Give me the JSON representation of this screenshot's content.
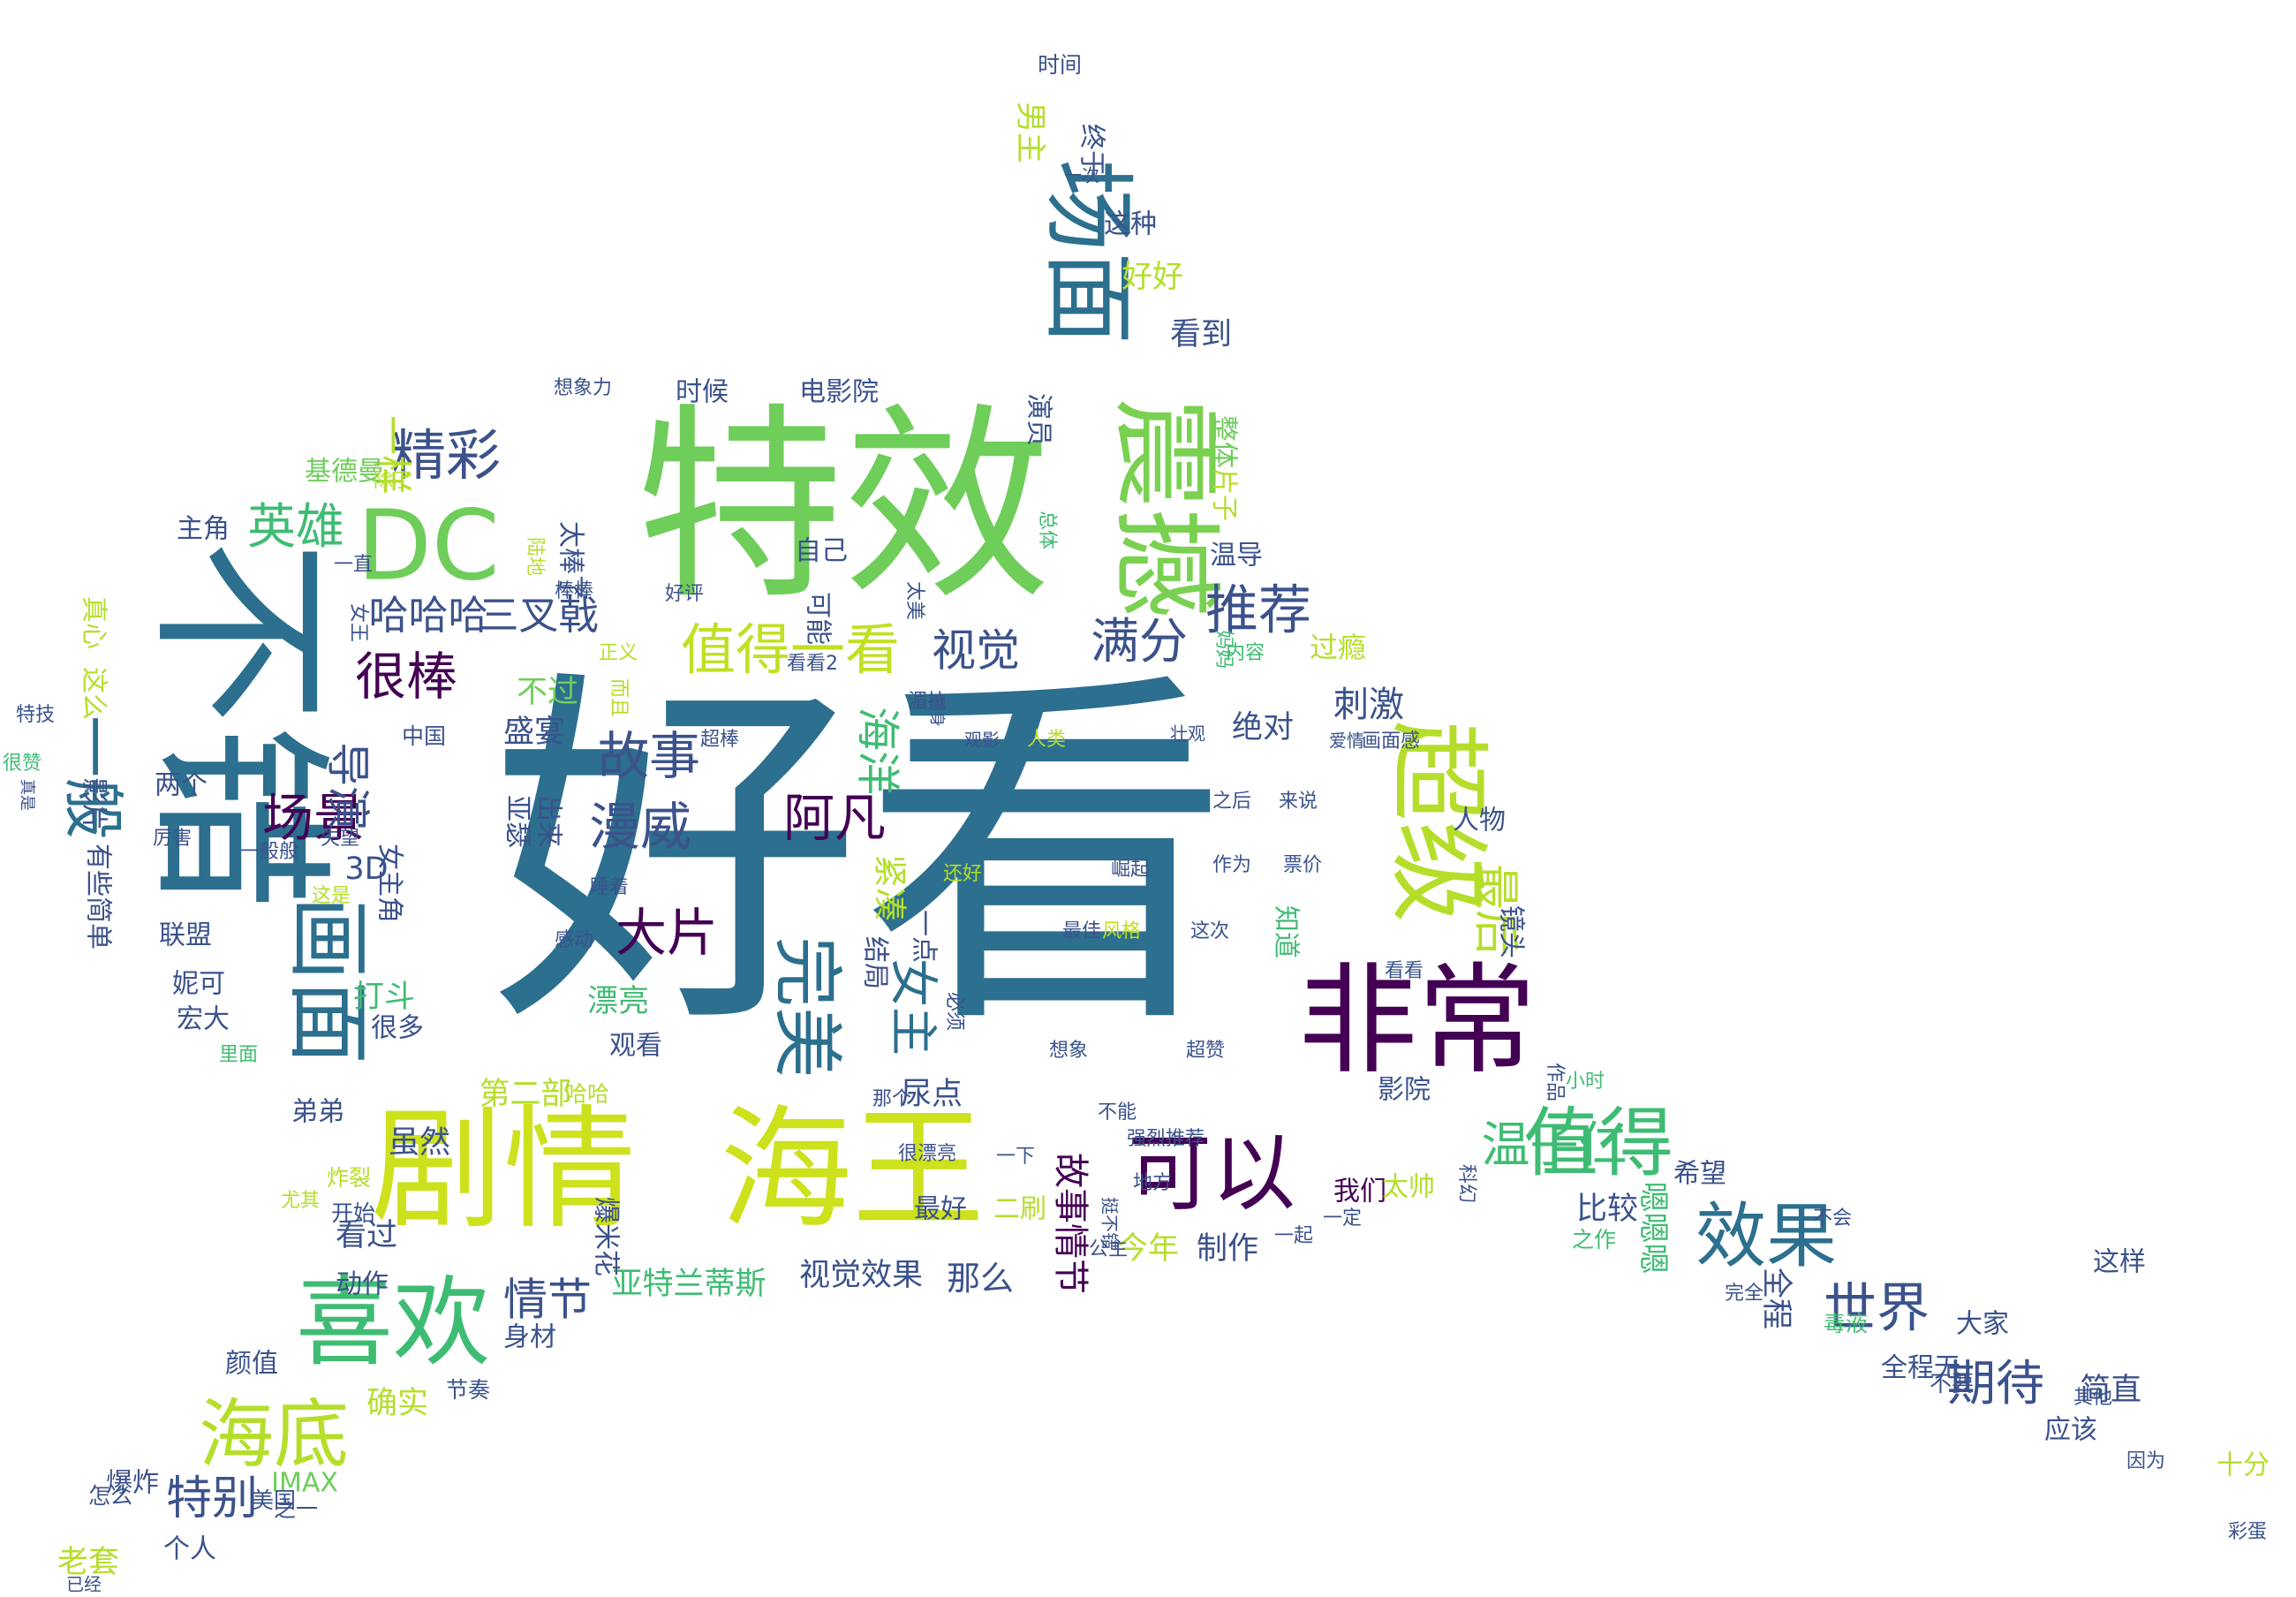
{
  "words": [
    {
      "text": "好看",
      "color": "#2c6f8e"
    },
    {
      "text": "特效",
      "color": "#6fcd5a"
    },
    {
      "text": "不错",
      "color": "#2c6f8e"
    },
    {
      "text": "剧情",
      "color": "#cde11d"
    },
    {
      "text": "海王",
      "color": "#cde11d"
    },
    {
      "text": "非常",
      "color": "#440154"
    },
    {
      "text": "震撼",
      "color": "#7ad151"
    },
    {
      "text": "场面",
      "color": "#2c6f8e"
    },
    {
      "text": "超级",
      "color": "#b5de2b"
    },
    {
      "text": "喜欢",
      "color": "#3fbc73"
    },
    {
      "text": "DC",
      "color": "#6fcd5a"
    },
    {
      "text": "可以",
      "color": "#440154"
    },
    {
      "text": "画面",
      "color": "#2c6f8e"
    },
    {
      "text": "值得",
      "color": "#3fbc73"
    },
    {
      "text": "海底",
      "color": "#b5de2b"
    },
    {
      "text": "完美",
      "color": "#2c6f8e"
    },
    {
      "text": "效果",
      "color": "#2c6f8e"
    },
    {
      "text": "一般",
      "color": "#2c6f8e"
    },
    {
      "text": "值得一看",
      "color": "#c2df23"
    },
    {
      "text": "精彩",
      "color": "#3b528b"
    },
    {
      "text": "推荐",
      "color": "#3b528b"
    },
    {
      "text": "很棒",
      "color": "#440154"
    },
    {
      "text": "满分",
      "color": "#3b528b"
    },
    {
      "text": "世界",
      "color": "#3b528b"
    },
    {
      "text": "故事",
      "color": "#3b528b"
    },
    {
      "text": "漫威",
      "color": "#3b528b"
    },
    {
      "text": "阿凡",
      "color": "#440154"
    },
    {
      "text": "大片",
      "color": "#440154"
    },
    {
      "text": "场景",
      "color": "#440154"
    },
    {
      "text": "导演",
      "color": "#3b528b"
    },
    {
      "text": "英雄",
      "color": "#3fbc73"
    },
    {
      "text": "视觉",
      "color": "#3b528b"
    },
    {
      "text": "女主",
      "color": "#2c6f8e"
    },
    {
      "text": "海洋",
      "color": "#3fbc73"
    },
    {
      "text": "期待",
      "color": "#3b528b"
    },
    {
      "text": "特别",
      "color": "#3b528b"
    },
    {
      "text": "情节",
      "color": "#3b528b"
    },
    {
      "text": "最后",
      "color": "#b5de2b"
    },
    {
      "text": "温子仁",
      "color": "#3fbc73"
    },
    {
      "text": "三叉戟",
      "color": "#3b528b"
    },
    {
      "text": "哈哈哈",
      "color": "#3b528b"
    },
    {
      "text": "一样",
      "color": "#b5de2b"
    },
    {
      "text": "刺激",
      "color": "#3b528b"
    },
    {
      "text": "看到",
      "color": "#3b528b"
    },
    {
      "text": "好好",
      "color": "#b5de2b"
    },
    {
      "text": "时候",
      "color": "#3b528b"
    },
    {
      "text": "电影院",
      "color": "#3b528b"
    },
    {
      "text": "基德曼",
      "color": "#6fcd5a"
    },
    {
      "text": "主角",
      "color": "#3b528b"
    },
    {
      "text": "男主",
      "color": "#b5de2b"
    },
    {
      "text": "终于",
      "color": "#3b528b"
    },
    {
      "text": "这种",
      "color": "#3b528b"
    },
    {
      "text": "时间",
      "color": "#3b528b"
    },
    {
      "text": "一次",
      "color": "#3b528b"
    },
    {
      "text": "演员",
      "color": "#3b528b"
    },
    {
      "text": "整体",
      "color": "#6fcd5a"
    },
    {
      "text": "片子",
      "color": "#b5de2b"
    },
    {
      "text": "太棒了",
      "color": "#3b528b"
    },
    {
      "text": "自己",
      "color": "#3b528b"
    },
    {
      "text": "可能",
      "color": "#3b528b"
    },
    {
      "text": "温导",
      "color": "#3b528b"
    },
    {
      "text": "过瘾",
      "color": "#b5de2b"
    },
    {
      "text": "不过",
      "color": "#6fcd5a"
    },
    {
      "text": "盛宴",
      "color": "#3b528b"
    },
    {
      "text": "绝对",
      "color": "#3b528b"
    },
    {
      "text": "两个",
      "color": "#3b528b"
    },
    {
      "text": "3D",
      "color": "#3b528b"
    },
    {
      "text": "联盟",
      "color": "#3b528b"
    },
    {
      "text": "妮可",
      "color": "#3b528b"
    },
    {
      "text": "宏大",
      "color": "#3b528b"
    },
    {
      "text": "打斗",
      "color": "#3fbc73"
    },
    {
      "text": "漂亮",
      "color": "#3fbc73"
    },
    {
      "text": "观看",
      "color": "#3b528b"
    },
    {
      "text": "紧凑",
      "color": "#b5de2b"
    },
    {
      "text": "第二部",
      "color": "#b5de2b"
    },
    {
      "text": "虽然",
      "color": "#3b528b"
    },
    {
      "text": "看过",
      "color": "#3b528b"
    },
    {
      "text": "动作",
      "color": "#3b528b"
    },
    {
      "text": "弟弟",
      "color": "#3b528b"
    },
    {
      "text": "尿点",
      "color": "#3b528b"
    },
    {
      "text": "故事情节",
      "color": "#440154"
    },
    {
      "text": "最好",
      "color": "#3b528b"
    },
    {
      "text": "二刷",
      "color": "#b5de2b"
    },
    {
      "text": "今年",
      "color": "#b5de2b"
    },
    {
      "text": "制作",
      "color": "#3b528b"
    },
    {
      "text": "那么",
      "color": "#3b528b"
    },
    {
      "text": "视觉效果",
      "color": "#3b528b"
    },
    {
      "text": "亚特兰蒂斯",
      "color": "#3fbc73"
    },
    {
      "text": "身材",
      "color": "#3b528b"
    },
    {
      "text": "确实",
      "color": "#b5de2b"
    },
    {
      "text": "颜值",
      "color": "#3b528b"
    },
    {
      "text": "节奏",
      "color": "#3b528b"
    },
    {
      "text": "老套",
      "color": "#b5de2b"
    },
    {
      "text": "爆炸",
      "color": "#3b528b"
    },
    {
      "text": "个人",
      "color": "#3b528b"
    },
    {
      "text": "IMAX",
      "color": "#6fcd5a"
    },
    {
      "text": "之一",
      "color": "#3b528b"
    },
    {
      "text": "美国",
      "color": "#3b528b"
    },
    {
      "text": "怎么",
      "color": "#3b528b"
    },
    {
      "text": "已经",
      "color": "#3b528b"
    },
    {
      "text": "全程",
      "color": "#3b528b"
    },
    {
      "text": "全程无",
      "color": "#3b528b"
    },
    {
      "text": "大家",
      "color": "#3b528b"
    },
    {
      "text": "简直",
      "color": "#3b528b"
    },
    {
      "text": "应该",
      "color": "#3b528b"
    },
    {
      "text": "十分",
      "color": "#b5de2b"
    },
    {
      "text": "这样",
      "color": "#3b528b"
    },
    {
      "text": "不要",
      "color": "#3b528b"
    },
    {
      "text": "因为",
      "color": "#3b528b"
    },
    {
      "text": "其他",
      "color": "#3b528b"
    },
    {
      "text": "彩蛋",
      "color": "#3b528b"
    },
    {
      "text": "比较",
      "color": "#3b528b"
    },
    {
      "text": "希望",
      "color": "#3b528b"
    },
    {
      "text": "嗯嗯嗯",
      "color": "#3fbc73"
    },
    {
      "text": "我们",
      "color": "#440154"
    },
    {
      "text": "太帅",
      "color": "#b5de2b"
    },
    {
      "text": "科幻",
      "color": "#3b528b"
    },
    {
      "text": "一定",
      "color": "#3b528b"
    },
    {
      "text": "一起",
      "color": "#3b528b"
    },
    {
      "text": "毒液",
      "color": "#3fbc73"
    },
    {
      "text": "完全",
      "color": "#3b528b"
    },
    {
      "text": "不会",
      "color": "#3b528b"
    },
    {
      "text": "之作",
      "color": "#3fbc73"
    },
    {
      "text": "作品",
      "color": "#3b528b"
    },
    {
      "text": "小时",
      "color": "#3fbc73"
    },
    {
      "text": "人物",
      "color": "#3b528b"
    },
    {
      "text": "知道",
      "color": "#3fbc73"
    },
    {
      "text": "镜头",
      "color": "#3b528b"
    },
    {
      "text": "影院",
      "color": "#3b528b"
    },
    {
      "text": "看看",
      "color": "#3b528b"
    },
    {
      "text": "这次",
      "color": "#3b528b"
    },
    {
      "text": "风格",
      "color": "#c2df23"
    },
    {
      "text": "最佳",
      "color": "#3b528b"
    },
    {
      "text": "作为",
      "color": "#3b528b"
    },
    {
      "text": "票价",
      "color": "#3b528b"
    },
    {
      "text": "崛起",
      "color": "#3b528b"
    },
    {
      "text": "超赞",
      "color": "#3b528b"
    },
    {
      "text": "想象",
      "color": "#3b528b"
    },
    {
      "text": "不能",
      "color": "#3b528b"
    },
    {
      "text": "强烈推荐",
      "color": "#3b528b"
    },
    {
      "text": "很漂亮",
      "color": "#3b528b"
    },
    {
      "text": "地方",
      "color": "#3b528b"
    },
    {
      "text": "公主",
      "color": "#3b528b"
    },
    {
      "text": "挺不错",
      "color": "#3b528b"
    },
    {
      "text": "一下",
      "color": "#3b528b"
    },
    {
      "text": "那个",
      "color": "#3b528b"
    },
    {
      "text": "必须",
      "color": "#3b528b"
    },
    {
      "text": "结局",
      "color": "#3b528b"
    },
    {
      "text": "一点",
      "color": "#3b528b"
    },
    {
      "text": "还好",
      "color": "#b5de2b"
    },
    {
      "text": "睡着",
      "color": "#3b528b"
    },
    {
      "text": "感动",
      "color": "#3b528b"
    },
    {
      "text": "亚瑟",
      "color": "#3b528b"
    },
    {
      "text": "出来",
      "color": "#3b528b"
    },
    {
      "text": "哈哈",
      "color": "#b5de2b"
    },
    {
      "text": "开始",
      "color": "#3b528b"
    },
    {
      "text": "炸裂",
      "color": "#b5de2b"
    },
    {
      "text": "爆米花",
      "color": "#3b528b"
    },
    {
      "text": "尤其",
      "color": "#b5de2b"
    },
    {
      "text": "很多",
      "color": "#3b528b"
    },
    {
      "text": "里面",
      "color": "#3fbc73"
    },
    {
      "text": "女主角",
      "color": "#3b528b"
    },
    {
      "text": "这是",
      "color": "#b5de2b"
    },
    {
      "text": "失望",
      "color": "#3b528b"
    },
    {
      "text": "一般般",
      "color": "#3b528b"
    },
    {
      "text": "厉害",
      "color": "#3b528b"
    },
    {
      "text": "有些简单",
      "color": "#3b528b"
    },
    {
      "text": "影片",
      "color": "#3b528b"
    },
    {
      "text": "中国",
      "color": "#3b528b"
    },
    {
      "text": "很赞",
      "color": "#3fbc73"
    },
    {
      "text": "特技",
      "color": "#3b528b"
    },
    {
      "text": "真是",
      "color": "#3b528b"
    },
    {
      "text": "这么",
      "color": "#b5de2b"
    },
    {
      "text": "真心",
      "color": "#b5de2b"
    },
    {
      "text": "女王",
      "color": "#3b528b"
    },
    {
      "text": "一直",
      "color": "#3b528b"
    },
    {
      "text": "除了",
      "color": "#b5de2b"
    },
    {
      "text": "想象力",
      "color": "#3b528b"
    },
    {
      "text": "陆地",
      "color": "#b5de2b"
    },
    {
      "text": "好评",
      "color": "#3b528b"
    },
    {
      "text": "棒棒",
      "color": "#3b528b"
    },
    {
      "text": "总体",
      "color": "#3fbc73"
    },
    {
      "text": "太美",
      "color": "#3b528b"
    },
    {
      "text": "看看2",
      "color": "#3b528b"
    },
    {
      "text": "湄拉",
      "color": "#3b528b"
    },
    {
      "text": "正义",
      "color": "#b5de2b"
    },
    {
      "text": "而且",
      "color": "#b5de2b"
    },
    {
      "text": "翻身",
      "color": "#3b528b"
    },
    {
      "text": "观影",
      "color": "#3b528b"
    },
    {
      "text": "超棒",
      "color": "#3b528b"
    },
    {
      "text": "人类",
      "color": "#b5de2b"
    },
    {
      "text": "壮观",
      "color": "#3b528b"
    },
    {
      "text": "妈妈",
      "color": "#3fbc73"
    },
    {
      "text": "内容",
      "color": "#3fbc73"
    },
    {
      "text": "爱情",
      "color": "#3b528b"
    },
    {
      "text": "画面感",
      "color": "#3b528b"
    },
    {
      "text": "之后",
      "color": "#3b528b"
    },
    {
      "text": "来说",
      "color": "#3b528b"
    }
  ]
}
